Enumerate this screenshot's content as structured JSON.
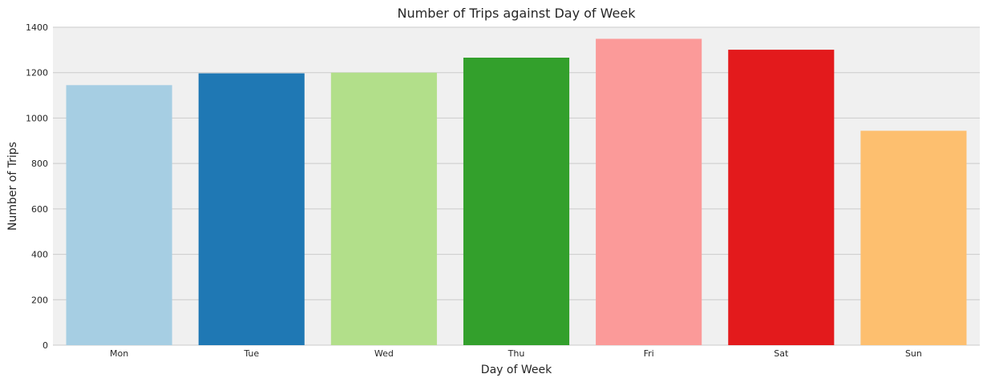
{
  "chart_data": {
    "type": "bar",
    "title": "Number of Trips against Day of Week",
    "xlabel": "Day of Week",
    "ylabel": "Number of Trips",
    "categories": [
      "Mon",
      "Tue",
      "Wed",
      "Thu",
      "Fri",
      "Sat",
      "Sun"
    ],
    "values": [
      1145,
      1197,
      1200,
      1266,
      1349,
      1301,
      944
    ],
    "colors": [
      "#a6cee3",
      "#1f78b4",
      "#b2df8a",
      "#33a02c",
      "#fb9a99",
      "#e31a1c",
      "#fdbf6f"
    ],
    "ylim": [
      0,
      1400
    ],
    "yticks": [
      0,
      200,
      400,
      600,
      800,
      1000,
      1200,
      1400
    ],
    "grid": true,
    "plot_background": "#f0f0f0",
    "grid_color": "#cbcbcb"
  }
}
